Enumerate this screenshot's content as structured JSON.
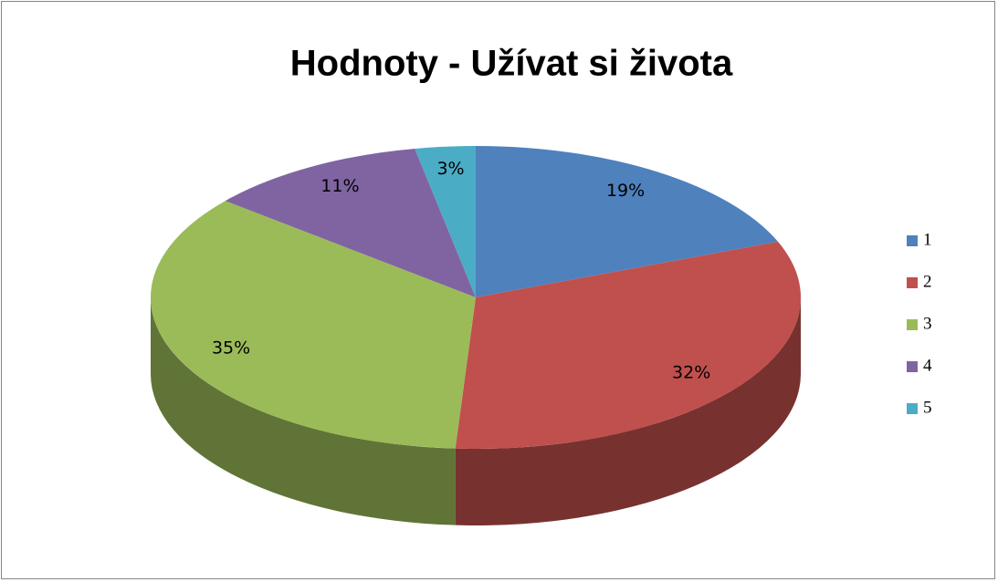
{
  "chart_data": {
    "type": "pie",
    "title": "Hodnoty - Užívat si života",
    "categories": [
      "1",
      "2",
      "3",
      "4",
      "5"
    ],
    "values": [
      19,
      32,
      35,
      11,
      3
    ],
    "value_labels": [
      "19%",
      "32%",
      "35%",
      "11%",
      "3%"
    ],
    "colors": [
      "#4f81bd",
      "#c0504d",
      "#9bbb59",
      "#8064a2",
      "#4bacc6"
    ],
    "legend": "right"
  }
}
